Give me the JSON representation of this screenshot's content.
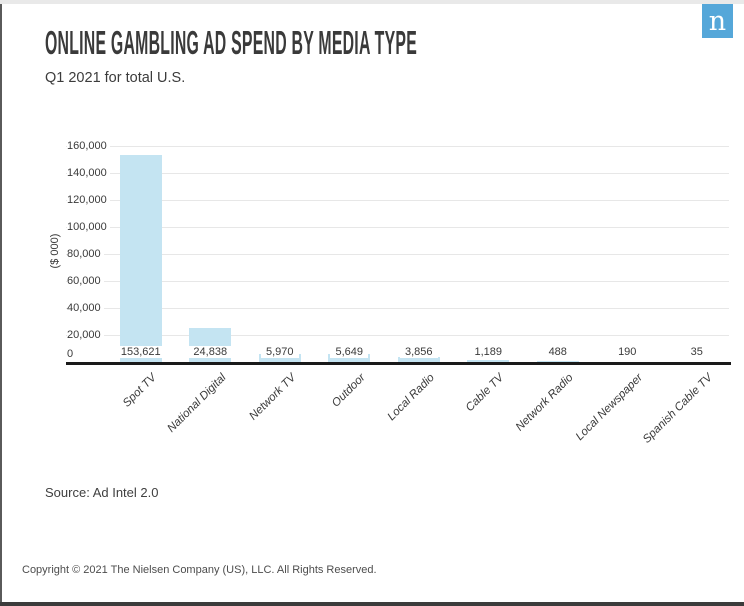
{
  "page": {
    "title": "ONLINE GAMBLING AD SPEND BY MEDIA TYPE",
    "subtitle": "Q1 2021 for total U.S.",
    "source": "Source: Ad Intel 2.0",
    "copyright": "Copyright © 2021 The Nielsen Company (US), LLC. All Rights Reserved.",
    "logo_letter": "n"
  },
  "colors": {
    "bar": "#c4e4f2",
    "logo_bg": "#55a7d9",
    "gridline": "#e7e7e7",
    "axis_line": "#1a1a1a",
    "text": "#3a3a3a"
  },
  "chart_data": {
    "type": "bar",
    "title": "ONLINE GAMBLING AD SPEND BY MEDIA TYPE",
    "subtitle": "Q1 2021 for total U.S.",
    "categories": [
      "Spot TV",
      "National Digital",
      "Network TV",
      "Outdoor",
      "Local Radio",
      "Cable TV",
      "Network Radio",
      "Local Newspaper",
      "Spanish Cable TV"
    ],
    "values": [
      153621,
      24838,
      5970,
      5649,
      3856,
      1189,
      488,
      190,
      35
    ],
    "value_labels": [
      "153,621",
      "24,838",
      "5,970",
      "5,649",
      "3,856",
      "1,189",
      "488",
      "190",
      "35"
    ],
    "xlabel": "",
    "ylabel": "($ 000)",
    "ylim": [
      0,
      160000
    ],
    "ytick_interval": 20000,
    "ytick_labels": [
      "0",
      "20,000",
      "40,000",
      "60,000",
      "80,000",
      "100,000",
      "120,000",
      "140,000",
      "160,000"
    ],
    "grid": "horizontal",
    "legend": "none",
    "bar_color": "#c4e4f2",
    "source": "Ad Intel 2.0"
  }
}
